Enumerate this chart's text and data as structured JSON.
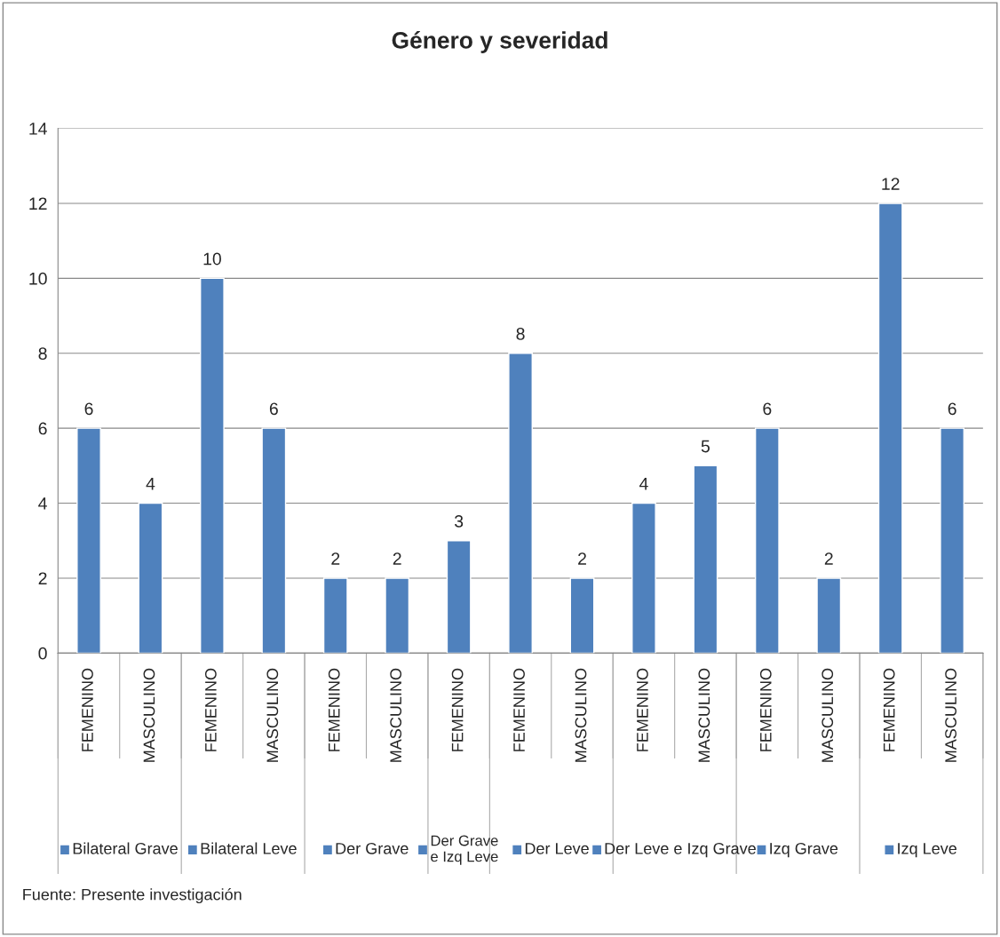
{
  "chart_data": {
    "type": "bar",
    "title": "Género y severidad",
    "categories": [
      "FEMENINO",
      "MASCULINO",
      "FEMENINO",
      "MASCULINO",
      "FEMENINO",
      "MASCULINO",
      "FEMENINO",
      "FEMENINO",
      "MASCULINO",
      "FEMENINO",
      "MASCULINO",
      "FEMENINO",
      "MASCULINO",
      "FEMENINO",
      "MASCULINO"
    ],
    "series": [
      {
        "name": "Bilateral Grave",
        "color": "#4f81bd",
        "values": [
          6,
          4,
          null,
          null,
          null,
          null,
          null,
          null,
          null,
          null,
          null,
          null,
          null,
          null,
          null
        ]
      },
      {
        "name": "Bilateral Leve",
        "color": "#4f81bd",
        "values": [
          null,
          null,
          10,
          6,
          null,
          null,
          null,
          null,
          null,
          null,
          null,
          null,
          null,
          null,
          null
        ]
      },
      {
        "name": "Der Grave",
        "color": "#4f81bd",
        "values": [
          null,
          null,
          null,
          null,
          2,
          2,
          null,
          null,
          null,
          null,
          null,
          null,
          null,
          null,
          null
        ]
      },
      {
        "name": "Der Grave e Izq Leve",
        "color": "#4f81bd",
        "values": [
          null,
          null,
          null,
          null,
          null,
          null,
          3,
          null,
          null,
          null,
          null,
          null,
          null,
          null,
          null
        ]
      },
      {
        "name": "Der Leve",
        "color": "#4f81bd",
        "values": [
          null,
          null,
          null,
          null,
          null,
          null,
          null,
          8,
          2,
          null,
          null,
          null,
          null,
          null,
          null
        ]
      },
      {
        "name": "Der Leve e Izq Grave",
        "color": "#4f81bd",
        "values": [
          null,
          null,
          null,
          null,
          null,
          null,
          null,
          null,
          null,
          4,
          5,
          null,
          null,
          null,
          null
        ]
      },
      {
        "name": "Izq Grave",
        "color": "#4f81bd",
        "values": [
          null,
          null,
          null,
          null,
          null,
          null,
          null,
          null,
          null,
          null,
          null,
          6,
          2,
          null,
          null
        ]
      },
      {
        "name": "Izq Leve",
        "color": "#4f81bd",
        "values": [
          null,
          null,
          null,
          null,
          null,
          null,
          null,
          null,
          null,
          null,
          null,
          null,
          null,
          12,
          6
        ]
      }
    ],
    "ylim": [
      0,
      14
    ],
    "yticks": [
      0,
      2,
      4,
      6,
      8,
      10,
      12,
      14
    ],
    "grid": "y",
    "data_labels": true,
    "legend": "bottom",
    "annotations": [
      "Fuente: Presente investigación"
    ]
  }
}
